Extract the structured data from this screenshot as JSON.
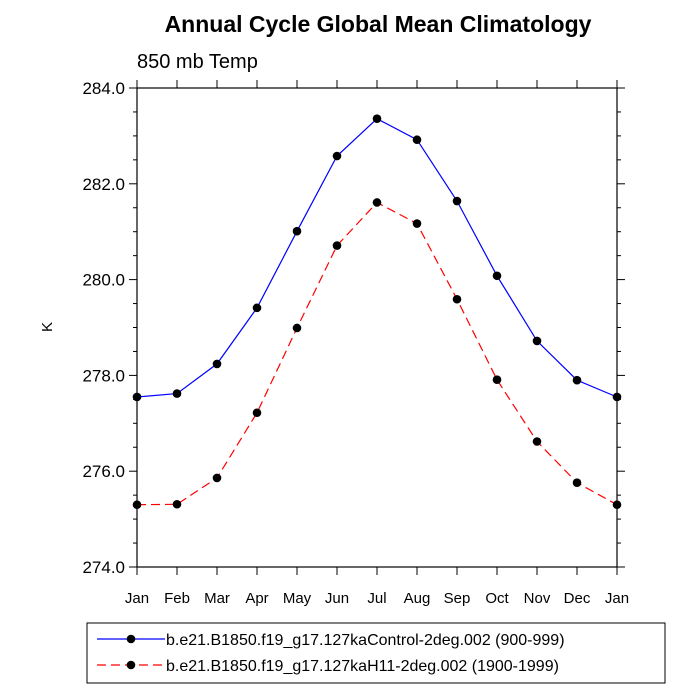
{
  "chart_data": {
    "type": "line",
    "title": "Annual Cycle Global Mean Climatology",
    "subtitle": "850 mb Temp",
    "xlabel": "",
    "ylabel": "K",
    "categories": [
      "Jan",
      "Feb",
      "Mar",
      "Apr",
      "May",
      "Jun",
      "Jul",
      "Aug",
      "Sep",
      "Oct",
      "Nov",
      "Dec",
      "Jan"
    ],
    "ylim": [
      274.0,
      284.0
    ],
    "yticks": [
      274.0,
      276.0,
      278.0,
      280.0,
      282.0,
      284.0
    ],
    "ytick_labels": [
      "274.0",
      "276.0",
      "278.0",
      "280.0",
      "282.0",
      "284.0"
    ],
    "legend_position": "bottom",
    "series": [
      {
        "name": "b.e21.B1850.f19_g17.127kaControl-2deg.002 (900-999)",
        "color": "#0000ff",
        "line_style": "solid",
        "marker": "circle",
        "values": [
          277.55,
          277.62,
          278.24,
          279.41,
          281.01,
          282.58,
          283.36,
          282.92,
          281.64,
          280.08,
          278.72,
          277.9,
          277.55
        ]
      },
      {
        "name": "b.e21.B1850.f19_g17.127kaH11-2deg.002 (1900-1999)",
        "color": "#ff0000",
        "line_style": "dashed",
        "marker": "circle",
        "values": [
          275.3,
          275.31,
          275.86,
          277.22,
          278.99,
          280.71,
          281.61,
          281.17,
          279.59,
          277.91,
          276.62,
          275.76,
          275.3
        ]
      }
    ]
  }
}
